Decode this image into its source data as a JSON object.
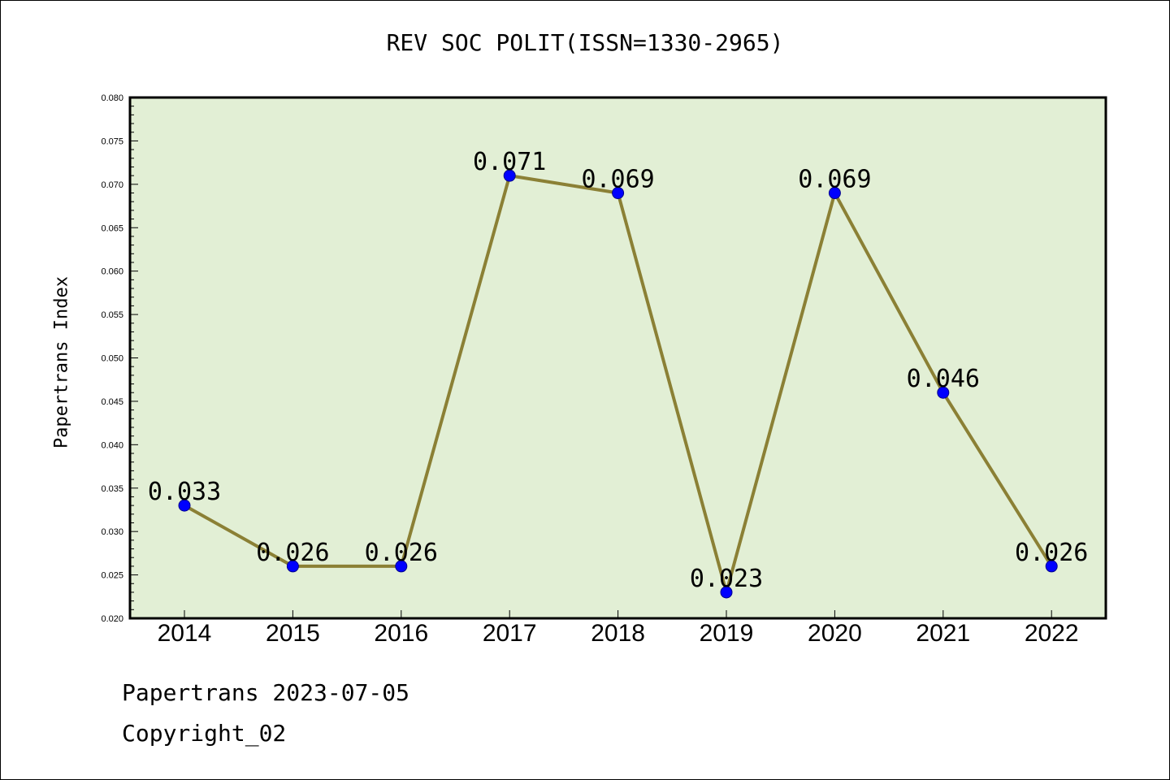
{
  "chart_data": {
    "type": "line",
    "title": "REV SOC POLIT(ISSN=1330-2965)",
    "xlabel": "",
    "ylabel": "Papertrans Index",
    "categories": [
      "2014",
      "2015",
      "2016",
      "2017",
      "2018",
      "2019",
      "2020",
      "2021",
      "2022"
    ],
    "series": [
      {
        "values": [
          0.033,
          0.026,
          0.026,
          0.071,
          0.069,
          0.023,
          0.069,
          0.046,
          0.026
        ],
        "data_labels": [
          "0.033",
          "0.026",
          "0.026",
          "0.071",
          "0.069",
          "0.023",
          "0.069",
          "0.046",
          "0.026"
        ]
      }
    ],
    "ylim": [
      0.02,
      0.08
    ],
    "yticks": [
      "0.020",
      "0.025",
      "0.030",
      "0.035",
      "0.040",
      "0.045",
      "0.050",
      "0.055",
      "0.060",
      "0.065",
      "0.070",
      "0.075",
      "0.080"
    ],
    "grid": false,
    "colors": {
      "plot_background": "#e2efd5",
      "line": "#8b8035",
      "marker": "#0000ff"
    }
  },
  "footer": {
    "source_line": "Papertrans 2023-07-05",
    "copyright_line": "Copyright_02"
  }
}
